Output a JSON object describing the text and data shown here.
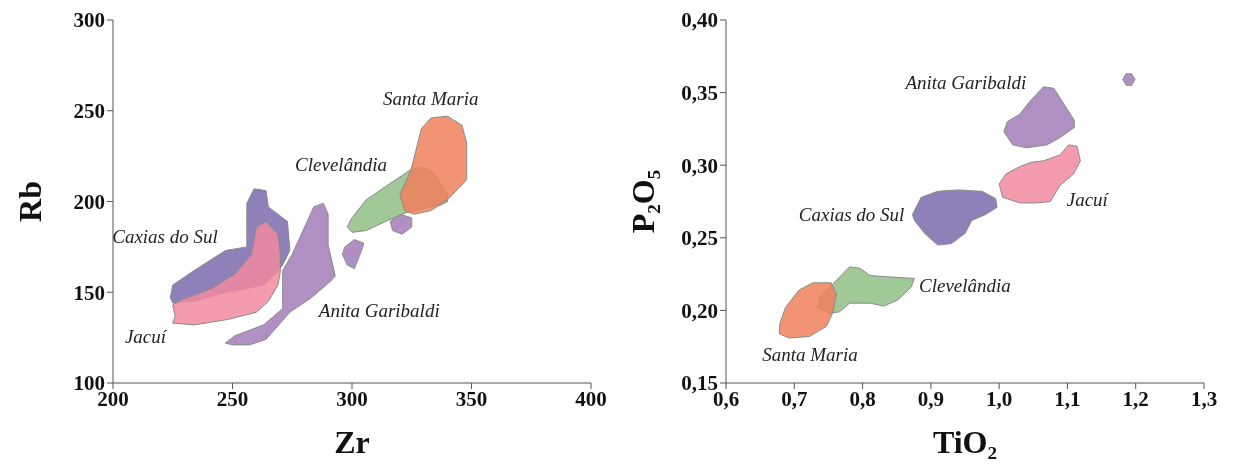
{
  "chart_data": [
    {
      "type": "area",
      "xlabel": "Zr",
      "ylabel": "Rb",
      "xlim": [
        200,
        400
      ],
      "ylim": [
        100,
        300
      ],
      "xticks": [
        200,
        250,
        300,
        350,
        400
      ],
      "yticks": [
        100,
        150,
        200,
        250,
        300
      ],
      "grid": false,
      "series": [
        {
          "name": "Caxias do Sul",
          "color": "#7d6aae",
          "x": [
            247,
            256,
            256,
            259,
            264,
            265,
            273,
            274,
            271,
            268,
            263,
            248,
            234,
            225,
            224,
            225,
            234
          ],
          "values": [
            173,
            175,
            199,
            207,
            206,
            197,
            189,
            173,
            165,
            160,
            154,
            150,
            145,
            144,
            147,
            154,
            162
          ]
        },
        {
          "name": "Jacuí",
          "color": "#f28aa0",
          "x": [
            225,
            234,
            248,
            260,
            265,
            269,
            270,
            270,
            269,
            264,
            260,
            258,
            251,
            241,
            229,
            225,
            226
          ],
          "values": [
            133,
            132,
            135,
            139,
            145,
            154,
            161,
            171,
            182,
            189,
            186,
            171,
            160,
            152,
            146,
            143,
            137
          ]
        },
        {
          "name": "Anita Garibaldi",
          "color": "#a27cb9",
          "x": [
            283,
            274,
            264,
            257,
            250,
            247,
            251,
            263,
            271,
            271,
            275,
            284,
            288,
            290,
            290,
            293,
            291,
            null,
            297,
            301,
            305,
            304,
            301,
            298,
            296,
            null,
            316,
            320,
            325,
            325,
            321,
            317
          ],
          "values": [
            147,
            139,
            124,
            121,
            121,
            122,
            126,
            132,
            141,
            162,
            171,
            197,
            199,
            193,
            176,
            159,
            156,
            null,
            175,
            179,
            177,
            173,
            163,
            165,
            171,
            null,
            189,
            193,
            191,
            186,
            182,
            184
          ]
        },
        {
          "name": "Clevelândia",
          "color": "#8fc085",
          "x": [
            316,
            324,
            329,
            334,
            340,
            340,
            337,
            329,
            323,
            314,
            306,
            300,
            298,
            300,
            306
          ],
          "values": [
            210,
            217,
            219,
            216,
            204,
            200,
            198,
            196,
            194,
            189,
            184,
            183,
            186,
            191,
            201
          ]
        },
        {
          "name": "Santa Maria",
          "color": "#f0805c",
          "x": [
            333,
            340,
            346,
            348,
            348,
            340,
            333,
            326,
            322,
            320,
            323,
            325,
            329
          ],
          "values": [
            246,
            247,
            242,
            232,
            212,
            201,
            195,
            193,
            195,
            204,
            212,
            219,
            240
          ]
        }
      ]
    },
    {
      "type": "area",
      "xlabel": "TiO₂",
      "ylabel": "P₂O₅",
      "xlim": [
        0.6,
        1.3
      ],
      "ylim": [
        0.15,
        0.4
      ],
      "xticks": [
        {
          "value": 0.6,
          "label": "0,6"
        },
        {
          "value": 0.7,
          "label": "0,7"
        },
        {
          "value": 0.8,
          "label": "0,8"
        },
        {
          "value": 0.9,
          "label": "0,9"
        },
        {
          "value": 1.0,
          "label": "1,0"
        },
        {
          "value": 1.1,
          "label": "1,1"
        },
        {
          "value": 1.2,
          "label": "1,2"
        },
        {
          "value": 1.3,
          "label": "1,3"
        }
      ],
      "yticks": [
        {
          "value": 0.15,
          "label": "0,15"
        },
        {
          "value": 0.2,
          "label": "0,20"
        },
        {
          "value": 0.25,
          "label": "0,25"
        },
        {
          "value": 0.3,
          "label": "0,30"
        },
        {
          "value": 0.35,
          "label": "0,35"
        },
        {
          "value": 0.4,
          "label": "0,40"
        }
      ],
      "grid": false,
      "series": [
        {
          "name": "Caxias do Sul",
          "color": "#7d6aae",
          "x": [
            0.873,
            0.886,
            0.91,
            0.94,
            0.975,
            0.995,
            0.997,
            0.98,
            0.96,
            0.95,
            0.93,
            0.91,
            0.891,
            0.876
          ],
          "values": [
            0.266,
            0.278,
            0.282,
            0.283,
            0.282,
            0.277,
            0.271,
            0.266,
            0.262,
            0.253,
            0.246,
            0.245,
            0.253,
            0.262
          ]
        },
        {
          "name": "Jacuí",
          "color": "#f28aa0",
          "x": [
            1.089,
            1.075,
            1.055,
            1.03,
            1.005,
            1.0,
            1.01,
            1.03,
            1.047,
            1.065,
            1.089,
            1.102,
            1.114,
            1.119,
            1.109
          ],
          "values": [
            0.286,
            0.275,
            0.274,
            0.274,
            0.278,
            0.287,
            0.294,
            0.299,
            0.302,
            0.303,
            0.307,
            0.314,
            0.313,
            0.303,
            0.294
          ]
        },
        {
          "name": "Anita Garibaldi",
          "color": "#a27cb9",
          "x": [
            1.045,
            1.065,
            1.08,
            1.095,
            1.11,
            1.11,
            1.089,
            1.07,
            1.04,
            1.02,
            1.007,
            1.012,
            1.03,
            null,
            1.181,
            1.186,
            1.194,
            1.199,
            1.194,
            1.186
          ],
          "values": [
            0.344,
            0.354,
            0.353,
            0.342,
            0.331,
            0.326,
            0.319,
            0.314,
            0.312,
            0.314,
            0.323,
            0.33,
            0.335,
            null,
            0.359,
            0.363,
            0.363,
            0.359,
            0.355,
            0.355
          ]
        },
        {
          "name": "Clevelândia",
          "color": "#8fc085",
          "x": [
            0.871,
            0.851,
            0.831,
            0.811,
            0.781,
            0.766,
            0.752,
            0.734,
            0.737,
            0.756,
            0.781,
            0.796,
            0.811,
            0.841,
            0.876
          ],
          "values": [
            0.216,
            0.207,
            0.203,
            0.205,
            0.205,
            0.199,
            0.198,
            0.202,
            0.209,
            0.218,
            0.23,
            0.229,
            0.224,
            0.223,
            0.222
          ]
        },
        {
          "name": "Santa Maria",
          "color": "#f0805c",
          "x": [
            0.722,
            0.692,
            0.678,
            0.679,
            0.687,
            0.707,
            0.727,
            0.754,
            0.762,
            0.756,
            0.747
          ],
          "values": [
            0.182,
            0.181,
            0.184,
            0.191,
            0.202,
            0.214,
            0.219,
            0.219,
            0.211,
            0.198,
            0.189
          ]
        }
      ]
    }
  ]
}
